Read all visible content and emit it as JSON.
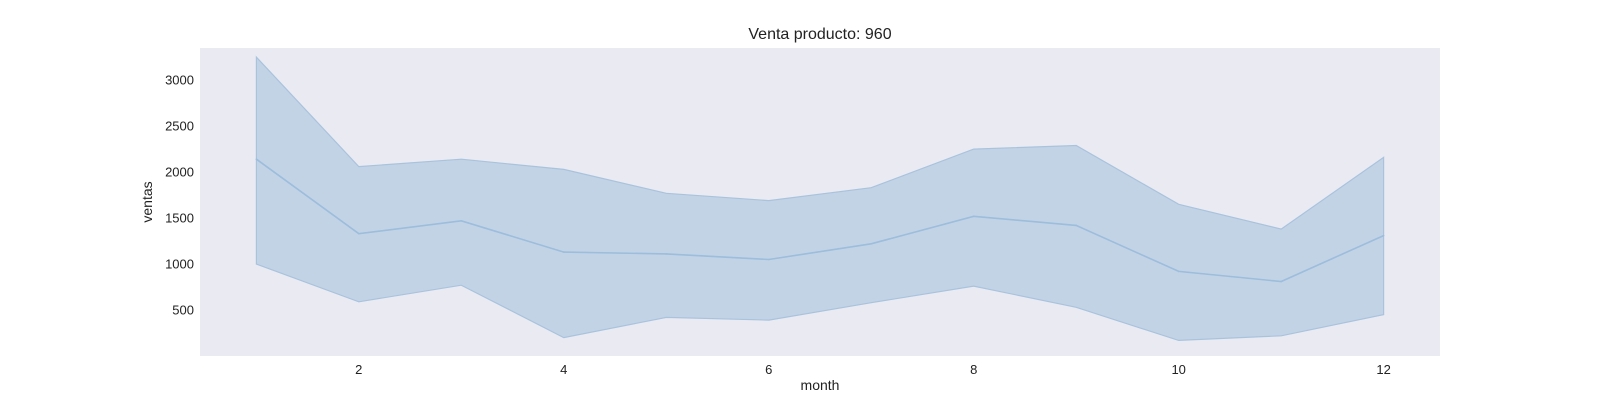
{
  "chart_data": {
    "type": "area",
    "title": "Venta producto: 960",
    "xlabel": "month",
    "ylabel": "ventas",
    "xlim": [
      0.45,
      12.55
    ],
    "ylim": [
      0,
      3350
    ],
    "xticks": [
      2,
      4,
      6,
      8,
      10,
      12
    ],
    "yticks": [
      500,
      1000,
      1500,
      2000,
      2500,
      3000
    ],
    "grid": false,
    "x": [
      1,
      2,
      3,
      4,
      5,
      6,
      7,
      8,
      9,
      10,
      11,
      12
    ],
    "series": [
      {
        "values": [
          2140,
          1330,
          1470,
          1130,
          1110,
          1050,
          1220,
          1520,
          1420,
          920,
          810,
          1310
        ],
        "lower": [
          1000,
          590,
          770,
          200,
          420,
          390,
          580,
          760,
          530,
          170,
          220,
          450
        ],
        "upper": [
          3250,
          2060,
          2140,
          2030,
          1770,
          1690,
          1830,
          2250,
          2290,
          1650,
          1380,
          2160
        ]
      }
    ],
    "colors": {
      "plot_background": "#eaeaf2",
      "band_fill": "#a9c3dd",
      "line": "#9cbddc"
    }
  }
}
